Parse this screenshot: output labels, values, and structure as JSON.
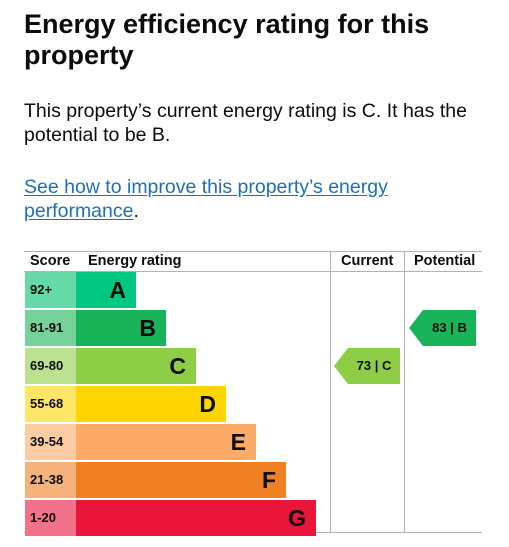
{
  "heading": "Energy efficiency rating for this property",
  "description": "This property’s current energy rating is C. It has the potential to be B.",
  "link": {
    "text": "See how to improve this property’s energy performance",
    "suffix": "."
  },
  "table": {
    "headers": {
      "score": "Score",
      "rating": "Energy rating",
      "current": "Current",
      "potential": "Potential"
    },
    "bands": [
      {
        "score": "92+",
        "letter": "A",
        "color": "#00c781",
        "score_bg": "#66d9a8",
        "text_color": "#0b0c0c"
      },
      {
        "score": "81-91",
        "letter": "B",
        "color": "#19b459",
        "score_bg": "#75d29b",
        "text_color": "#0b0c0c"
      },
      {
        "score": "69-80",
        "letter": "C",
        "color": "#8dce46",
        "score_bg": "#bbe290",
        "text_color": "#0b0c0c"
      },
      {
        "score": "55-68",
        "letter": "D",
        "color": "#ffd500",
        "score_bg": "#ffe666",
        "text_color": "#0b0c0c"
      },
      {
        "score": "39-54",
        "letter": "E",
        "color": "#fcaa65",
        "score_bg": "#fdcca3",
        "text_color": "#0b0c0c"
      },
      {
        "score": "21-38",
        "letter": "F",
        "color": "#ef8023",
        "score_bg": "#f5b37b",
        "text_color": "#0b0c0c"
      },
      {
        "score": "1-20",
        "letter": "G",
        "color": "#e9153b",
        "score_bg": "#f27389",
        "text_color": "#0b0c0c"
      }
    ],
    "current": {
      "label": "73 | C",
      "band": "C",
      "color": "#8dce46"
    },
    "potential": {
      "label": "83 | B",
      "band": "B",
      "color": "#19b459"
    }
  }
}
